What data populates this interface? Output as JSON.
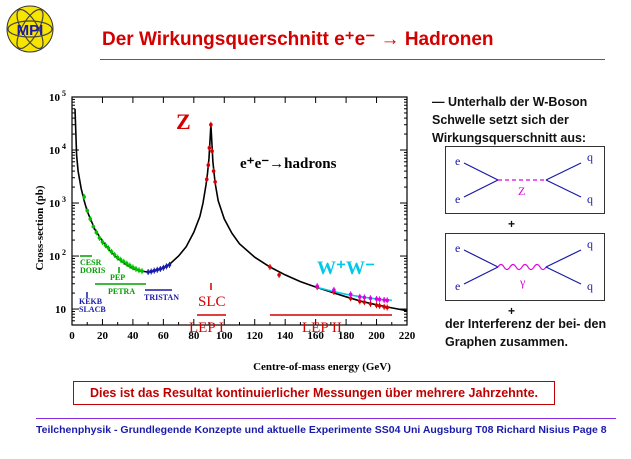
{
  "logo": {
    "text": "MPI",
    "icon": "mpi-atom-logo"
  },
  "title": "Der Wirkungsquerschnitt e⁺e⁻ → Hadronen",
  "side": {
    "intro": "— Unterhalb der W-Boson Schwelle setzt sich der Wirkungsquerschnitt aus:",
    "plus1": "+",
    "plus2": "+",
    "outro": "der Interferenz der bei- den Graphen zusammen."
  },
  "feyn1": {
    "e_in": "e",
    "e_out": "e",
    "q_top": "q",
    "q_bot": "q",
    "boson": "Z"
  },
  "feyn2": {
    "e_in": "e",
    "e_out": "e",
    "q_top": "q",
    "q_bot": "q",
    "boson": "γ"
  },
  "caption": "Dies ist das Resultat kontinuierlicher Messungen über mehrere Jahrzehnte.",
  "footer": "Teilchenphysik - Grundlegende Konzepte und aktuelle Experimente    SS04 Uni Augsburg    T08    Richard Nisius    Page 8",
  "colors": {
    "title": "#d40000",
    "rule": "#8a2be2",
    "footer": "#1a1aaa",
    "z_label": "#d40000",
    "ww": "#00c8e8"
  },
  "chart_data": {
    "type": "line",
    "xlabel": "Centre-of-mass energy (GeV)",
    "ylabel": "Cross-section (pb)",
    "xlim": [
      0,
      220
    ],
    "ylim": [
      5,
      100000
    ],
    "yscale": "log",
    "xticks": [
      "0",
      "20",
      "40",
      "60",
      "80",
      "100",
      "120",
      "140",
      "160",
      "180",
      "200",
      "220"
    ],
    "yticks": [
      {
        "base": "10",
        "exp": "5",
        "value": 100000
      },
      {
        "base": "10",
        "exp": "4",
        "value": 10000
      },
      {
        "base": "10",
        "exp": "3",
        "value": 1000
      },
      {
        "base": "10",
        "exp": "2",
        "value": 100
      },
      {
        "base": "10",
        "exp": "",
        "value": 10
      }
    ],
    "annotations": {
      "z": "Z",
      "process": "e⁺e⁻→hadrons",
      "ww": "W⁺W⁻",
      "slc": "SLC",
      "lep1": "LEP I",
      "lep2": "LEP II"
    },
    "experiments": [
      {
        "name": "CESR",
        "color": "#00a000"
      },
      {
        "name": "DORIS",
        "color": "#00a000"
      },
      {
        "name": "PEP",
        "color": "#00a000"
      },
      {
        "name": "PETRA",
        "color": "#00a000"
      },
      {
        "name": "TRISTAN",
        "color": "#1a1aaa"
      },
      {
        "name": "KEKB",
        "color": "#1a1aaa"
      },
      {
        "name": "SLACB",
        "color": "#1a1aaa"
      }
    ],
    "theory_curve": {
      "x": [
        2,
        3,
        4,
        6,
        8,
        10,
        15,
        20,
        25,
        30,
        35,
        40,
        45,
        50,
        55,
        60,
        65,
        70,
        75,
        80,
        84,
        86,
        88,
        89,
        90,
        91.2,
        92.5,
        94,
        96,
        100,
        105,
        110,
        120,
        130,
        140,
        150,
        160,
        170,
        180,
        190,
        200,
        210,
        220
      ],
      "y": [
        60000,
        8000,
        4000,
        1900,
        1100,
        700,
        320,
        190,
        125,
        90,
        70,
        58,
        52,
        50,
        53,
        60,
        74,
        100,
        150,
        280,
        560,
        1000,
        2200,
        3600,
        7000,
        30000,
        6000,
        2400,
        1100,
        500,
        270,
        170,
        95,
        62,
        44,
        33,
        26,
        21,
        17,
        14,
        12,
        10.5,
        9.3
      ]
    },
    "data_series": [
      {
        "name": "low-energy",
        "color": "#00c000",
        "x": [
          8,
          10,
          12,
          14,
          16,
          18,
          20,
          22,
          24,
          26,
          28,
          30,
          32,
          34,
          36,
          38,
          40,
          42,
          44,
          46
        ],
        "y": [
          1300,
          720,
          500,
          360,
          280,
          220,
          185,
          160,
          140,
          120,
          105,
          93,
          85,
          78,
          72,
          66,
          61,
          57,
          54,
          52
        ]
      },
      {
        "name": "tristan",
        "color": "#1a1aaa",
        "x": [
          50,
          52,
          54,
          56,
          58,
          60,
          62,
          64
        ],
        "y": [
          50,
          51,
          53,
          55,
          57,
          60,
          64,
          68
        ]
      },
      {
        "name": "lep1",
        "color": "#d40000",
        "x": [
          88.5,
          89.5,
          90.2,
          91.2,
          92,
          93,
          94
        ],
        "y": [
          2800,
          5200,
          11000,
          30000,
          9500,
          4000,
          2500
        ]
      },
      {
        "name": "lep2",
        "color": "#d40000",
        "x": [
          130,
          136,
          161,
          172,
          183,
          189,
          192,
          196,
          200,
          202,
          205,
          207
        ],
        "y": [
          62,
          44,
          26,
          21,
          16,
          14,
          13.5,
          12.5,
          11.8,
          11.5,
          11,
          10.7
        ]
      },
      {
        "name": "ww",
        "color": "#e000e0",
        "x": [
          161,
          172,
          183,
          189,
          192,
          196,
          200,
          202,
          205,
          207
        ],
        "y": [
          27,
          23,
          19,
          17,
          16.6,
          16,
          15.5,
          15.2,
          14.8,
          14.6
        ]
      }
    ],
    "ww_curve": {
      "x": [
        160,
        170,
        180,
        190,
        200,
        210
      ],
      "y": [
        26,
        22,
        19,
        17,
        15.5,
        14.6
      ]
    }
  }
}
